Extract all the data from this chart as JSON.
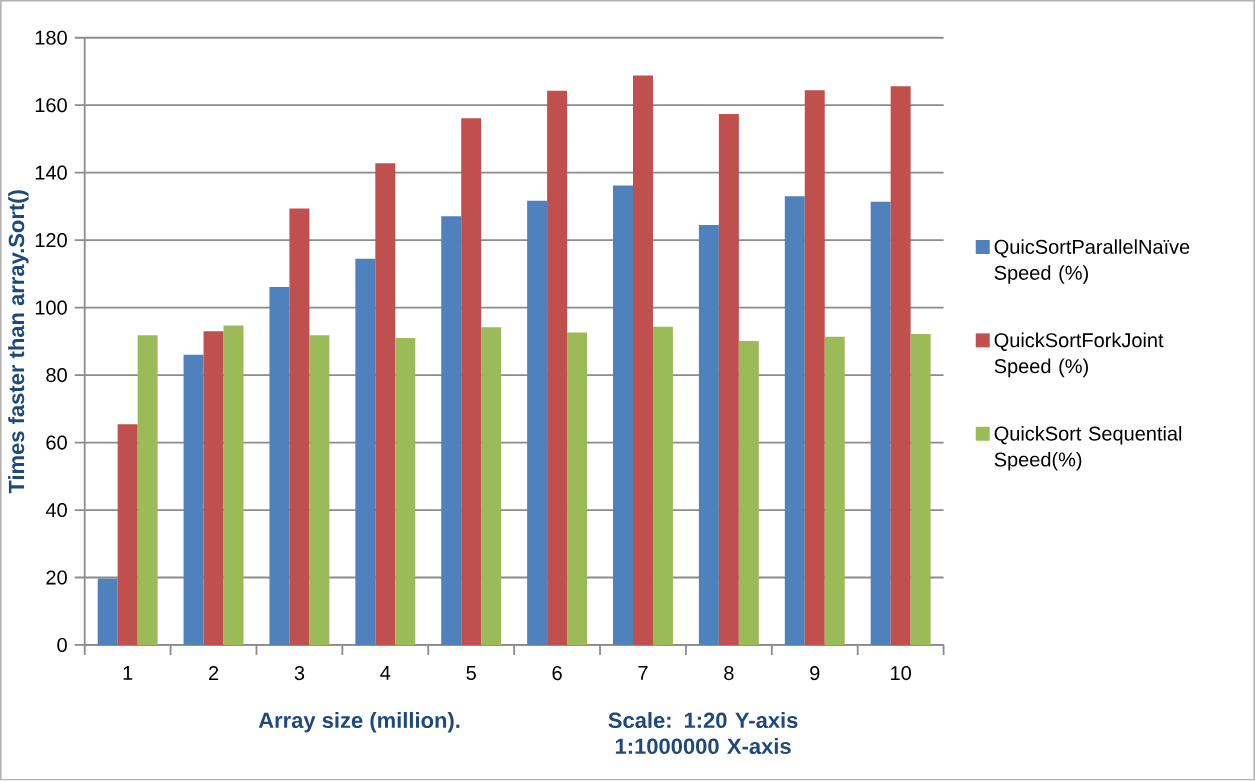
{
  "chart_data": {
    "type": "bar",
    "categories": [
      "1",
      "2",
      "3",
      "4",
      "5",
      "6",
      "7",
      "8",
      "9",
      "10"
    ],
    "xlabel": "Array size  (million).",
    "ylabel": "Times faster than array.Sort()",
    "annotations": [
      "Scale: 1:20 Y-axis 1:1000000  X-axis"
    ],
    "series": [
      {
        "name": "QuicSortParallelNaïve Speed (%)",
        "color": "#4f81bd",
        "values": [
          19.7,
          86.0,
          106.1,
          114.5,
          127.1,
          131.7,
          136.2,
          124.5,
          133.0,
          131.4
        ]
      },
      {
        "name": "QuickSortForkJoint Speed (%)",
        "color": "#c0504d",
        "values": [
          65.4,
          93.0,
          129.4,
          142.8,
          156.1,
          164.3,
          168.8,
          157.4,
          164.4,
          165.6
        ]
      },
      {
        "name": "QuickSort Sequential Speed(%)",
        "color": "#9bbb59",
        "values": [
          91.8,
          94.7,
          91.8,
          91.0,
          94.2,
          92.6,
          94.3,
          90.1,
          91.4,
          92.2
        ]
      }
    ],
    "ylim": [
      0,
      180
    ],
    "yticks": [
      0,
      20,
      40,
      60,
      80,
      100,
      120,
      140,
      160,
      180
    ],
    "grid": "y",
    "legend": "right"
  }
}
